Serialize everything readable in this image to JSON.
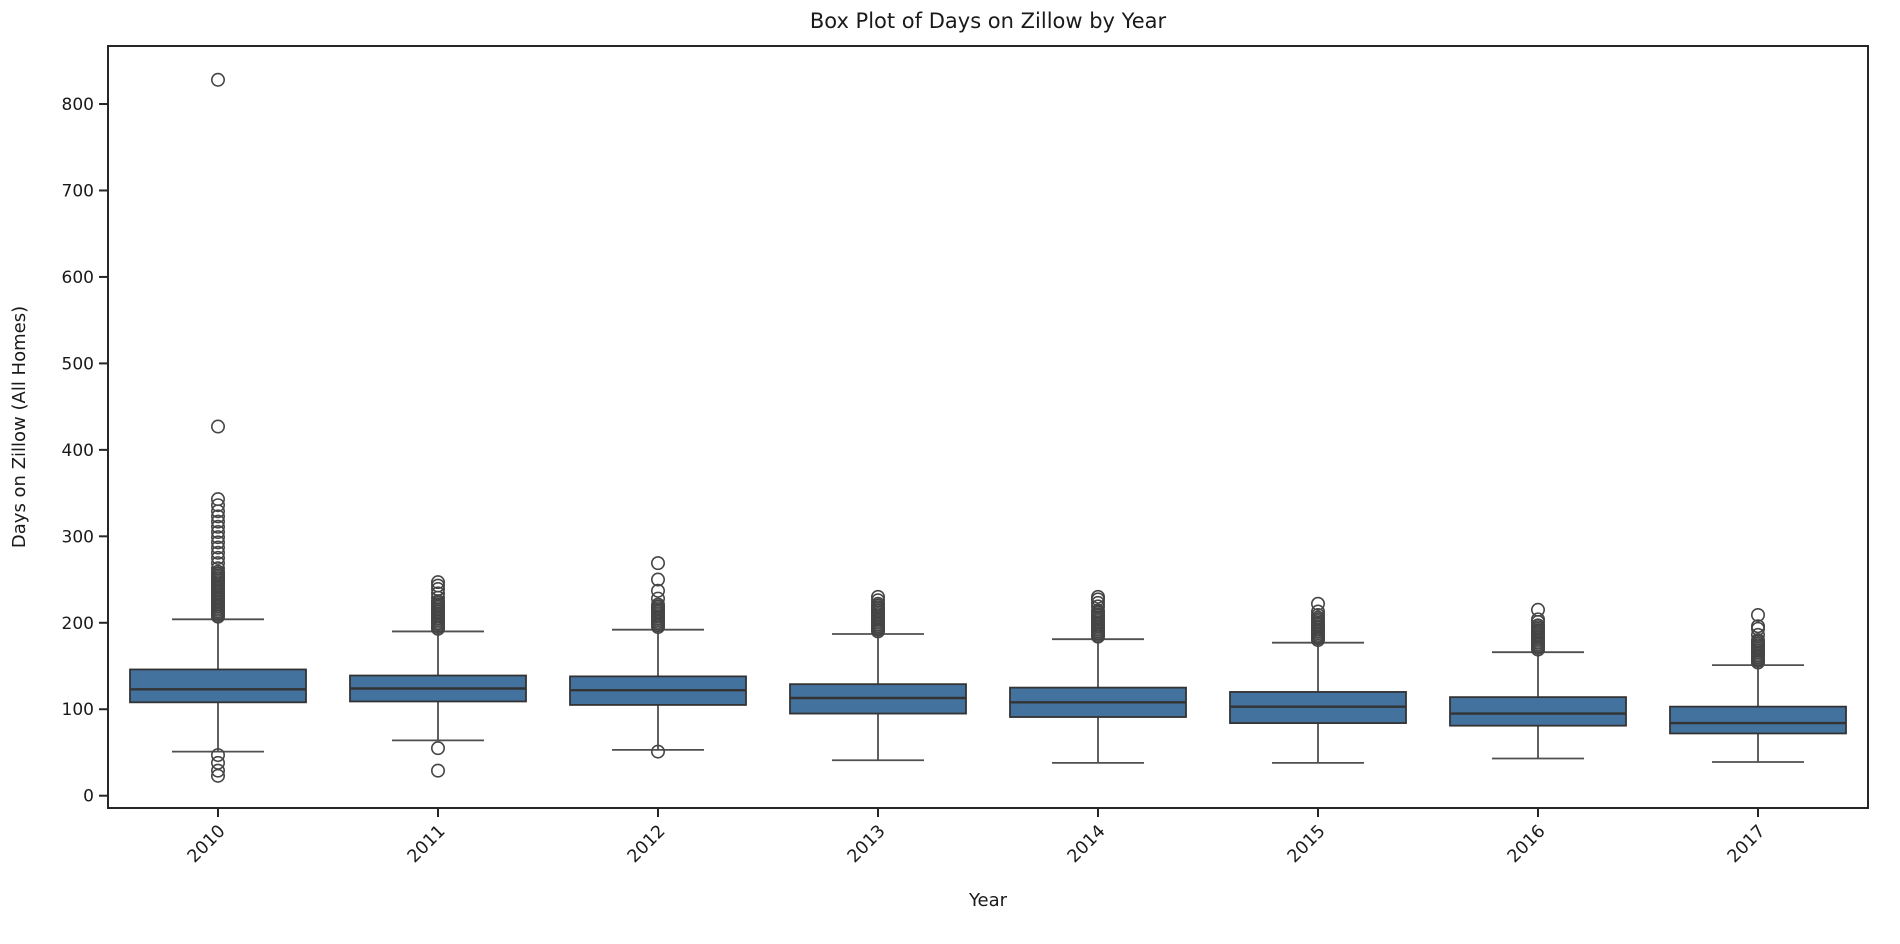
{
  "chart_data": {
    "type": "box",
    "title": "Box Plot of Days on Zillow by Year",
    "xlabel": "Year",
    "ylabel": "Days on Zillow (All Homes)",
    "categories": [
      "2010",
      "2011",
      "2012",
      "2013",
      "2014",
      "2015",
      "2016",
      "2017"
    ],
    "yticks": [
      0,
      100,
      200,
      300,
      400,
      500,
      600,
      700,
      800
    ],
    "ylim": [
      -14,
      867
    ],
    "grid": false,
    "legend": null,
    "x_tick_rotation": 45,
    "colors": {
      "box_fill": "#44729e",
      "box_edge": "#333333",
      "median_line": "#333333",
      "whisker": "#4f4f4f",
      "outlier_edge": "#454545",
      "spine": "#262626",
      "text": "#1a1a1a"
    },
    "series": [
      {
        "year": "2010",
        "whisker_low": 51,
        "q1": 108,
        "median": 123,
        "q3": 146,
        "whisker_high": 204,
        "outliers_high": [
          207,
          209,
          211,
          213,
          215,
          217,
          219,
          221,
          223,
          225,
          227,
          229,
          231,
          233,
          235,
          237,
          239,
          241,
          243,
          245,
          247,
          249,
          251,
          253,
          255,
          257,
          259,
          263,
          269,
          275,
          281,
          287,
          293,
          299,
          305,
          311,
          317,
          323,
          329,
          336,
          343,
          427,
          828
        ],
        "outliers_low": [
          47,
          38,
          29,
          23
        ]
      },
      {
        "year": "2011",
        "whisker_low": 64,
        "q1": 109,
        "median": 124,
        "q3": 139,
        "whisker_high": 190,
        "outliers_high": [
          193,
          195,
          197,
          199,
          201,
          203,
          205,
          207,
          209,
          211,
          213,
          215,
          217,
          219,
          221,
          223,
          225,
          229,
          234,
          239,
          243,
          247
        ],
        "outliers_low": [
          55,
          29
        ]
      },
      {
        "year": "2012",
        "whisker_low": 53,
        "q1": 105,
        "median": 122,
        "q3": 138,
        "whisker_high": 192,
        "outliers_high": [
          195,
          197,
          199,
          201,
          203,
          205,
          207,
          209,
          211,
          213,
          215,
          217,
          219,
          221,
          228,
          237,
          250,
          269
        ],
        "outliers_low": [
          51
        ]
      },
      {
        "year": "2013",
        "whisker_low": 41,
        "q1": 95,
        "median": 113,
        "q3": 129,
        "whisker_high": 187,
        "outliers_high": [
          190,
          192,
          194,
          196,
          198,
          200,
          202,
          204,
          206,
          208,
          210,
          212,
          214,
          216,
          218,
          220,
          222,
          226,
          230
        ],
        "outliers_low": []
      },
      {
        "year": "2014",
        "whisker_low": 38,
        "q1": 91,
        "median": 108,
        "q3": 125,
        "whisker_high": 181,
        "outliers_high": [
          184,
          186,
          188,
          190,
          192,
          194,
          196,
          198,
          200,
          202,
          204,
          206,
          208,
          210,
          212,
          214,
          219,
          223,
          227,
          230
        ],
        "outliers_low": []
      },
      {
        "year": "2015",
        "whisker_low": 38,
        "q1": 84,
        "median": 103,
        "q3": 120,
        "whisker_high": 177,
        "outliers_high": [
          180,
          182,
          184,
          186,
          188,
          190,
          192,
          194,
          196,
          198,
          200,
          202,
          204,
          206,
          209,
          213,
          222
        ],
        "outliers_low": []
      },
      {
        "year": "2016",
        "whisker_low": 43,
        "q1": 81,
        "median": 95,
        "q3": 114,
        "whisker_high": 166,
        "outliers_high": [
          169,
          171,
          173,
          175,
          177,
          179,
          181,
          183,
          185,
          187,
          189,
          191,
          193,
          195,
          197,
          201,
          204,
          215
        ],
        "outliers_low": []
      },
      {
        "year": "2017",
        "whisker_low": 39,
        "q1": 72,
        "median": 84,
        "q3": 103,
        "whisker_high": 151,
        "outliers_high": [
          154,
          156,
          158,
          160,
          162,
          164,
          166,
          168,
          170,
          172,
          174,
          176,
          178,
          180,
          186,
          193,
          196,
          209
        ],
        "outliers_low": []
      }
    ]
  }
}
